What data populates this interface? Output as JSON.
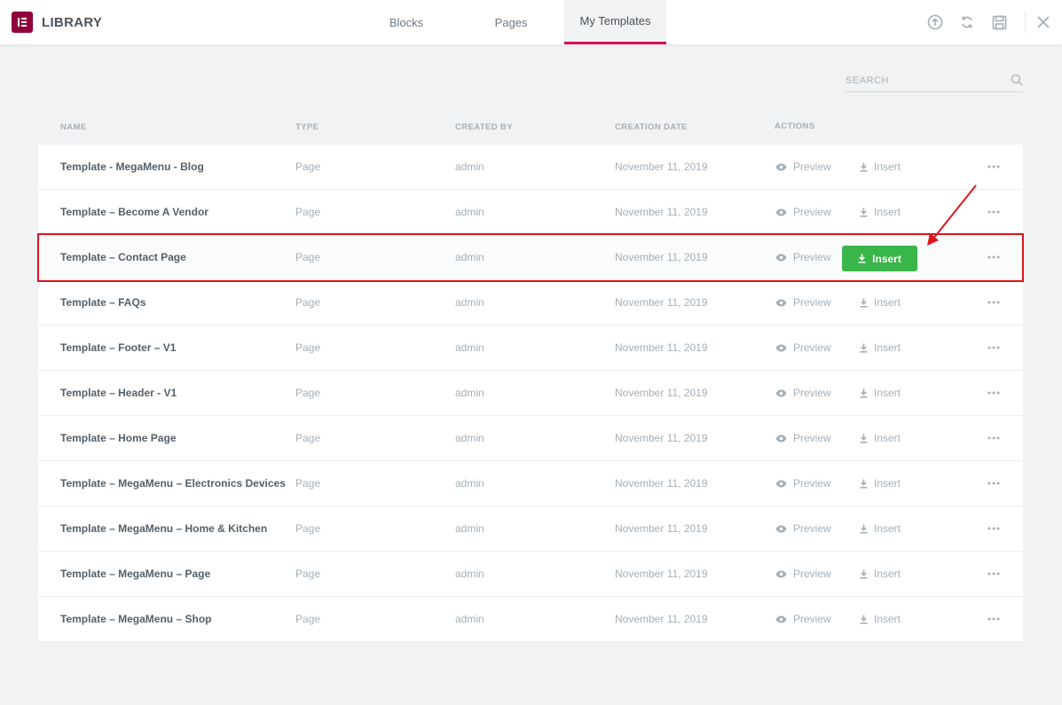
{
  "header": {
    "logo_icon": "elementor-logo-icon",
    "title": "LIBRARY",
    "tabs": [
      {
        "label": "Blocks",
        "active": false
      },
      {
        "label": "Pages",
        "active": false
      },
      {
        "label": "My Templates",
        "active": true
      }
    ],
    "icons": [
      "upload-icon",
      "sync-icon",
      "save-icon",
      "close-icon"
    ]
  },
  "search": {
    "placeholder": "SEARCH",
    "value": ""
  },
  "columns": {
    "name": "NAME",
    "type": "TYPE",
    "created_by": "CREATED BY",
    "creation_date": "CREATION DATE",
    "actions": "ACTIONS"
  },
  "actions": {
    "preview_label": "Preview",
    "insert_label": "Insert"
  },
  "rows": [
    {
      "name": "Template - MegaMenu - Blog",
      "type": "Page",
      "author": "admin",
      "date": "November 11, 2019"
    },
    {
      "name": "Template – Become A Vendor",
      "type": "Page",
      "author": "admin",
      "date": "November 11, 2019"
    },
    {
      "name": "Template – Contact Page",
      "type": "Page",
      "author": "admin",
      "date": "November 11, 2019",
      "highlighted": true
    },
    {
      "name": "Template – FAQs",
      "type": "Page",
      "author": "admin",
      "date": "November 11, 2019"
    },
    {
      "name": "Template – Footer – V1",
      "type": "Page",
      "author": "admin",
      "date": "November 11, 2019"
    },
    {
      "name": "Template – Header - V1",
      "type": "Page",
      "author": "admin",
      "date": "November 11, 2019"
    },
    {
      "name": "Template – Home Page",
      "type": "Page",
      "author": "admin",
      "date": "November 11, 2019"
    },
    {
      "name": "Template – MegaMenu – Electronics Devices",
      "type": "Page",
      "author": "admin",
      "date": "November 11, 2019"
    },
    {
      "name": "Template – MegaMenu – Home & Kitchen",
      "type": "Page",
      "author": "admin",
      "date": "November 11, 2019"
    },
    {
      "name": "Template – MegaMenu – Page",
      "type": "Page",
      "author": "admin",
      "date": "November 11, 2019"
    },
    {
      "name": "Template – MegaMenu – Shop",
      "type": "Page",
      "author": "admin",
      "date": "November 11, 2019"
    }
  ],
  "colors": {
    "accent": "#d30c5c",
    "insert_button": "#39b54a",
    "callout": "#e0141e",
    "logo": "#92003b"
  }
}
